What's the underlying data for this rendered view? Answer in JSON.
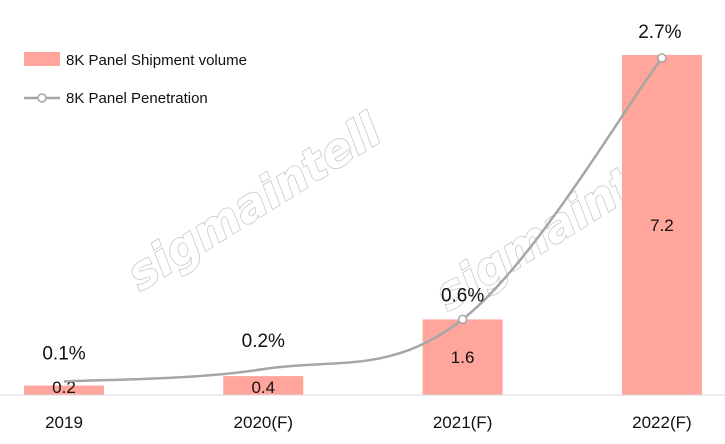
{
  "chart_data": {
    "type": "bar",
    "categories": [
      "2019",
      "2020(F)",
      "2021(F)",
      "2022(F)"
    ],
    "series": [
      {
        "name": "8K Panel Shipment volume",
        "type": "bar",
        "values": [
          0.2,
          0.4,
          1.6,
          7.2
        ],
        "labels": [
          "0.2",
          "0.4",
          "1.6",
          "7.2"
        ],
        "color": "#ffa59b"
      },
      {
        "name": "8K Panel Penetration",
        "type": "line",
        "smooth": true,
        "values": [
          0.1,
          0.2,
          0.6,
          2.7
        ],
        "labels": [
          "0.1%",
          "0.2%",
          "0.6%",
          "2.7%"
        ],
        "color": "#a6a6a6"
      }
    ],
    "title": "",
    "xlabel": "",
    "ylabel": "",
    "ylim": [
      0,
      7.2
    ],
    "y2lim": [
      0,
      2.7
    ],
    "grid": false,
    "legend_position": "top-left",
    "watermark": "sigmaintell"
  }
}
